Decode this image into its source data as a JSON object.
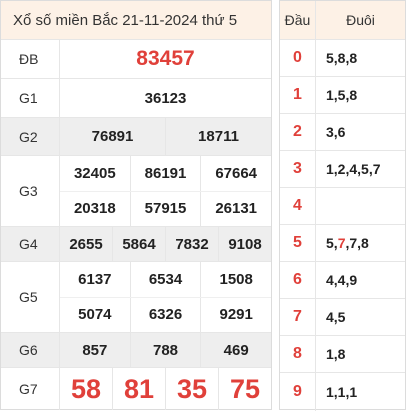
{
  "title": "Xổ số miền Bắc 21-11-2024 thứ 5",
  "prizes": {
    "db": {
      "label": "ĐB",
      "numbers": [
        "83457"
      ]
    },
    "g1": {
      "label": "G1",
      "numbers": [
        "36123"
      ]
    },
    "g2": {
      "label": "G2",
      "numbers": [
        "76891",
        "18711"
      ]
    },
    "g3": {
      "label": "G3",
      "numbers": [
        "32405",
        "86191",
        "67664",
        "20318",
        "57915",
        "26131"
      ]
    },
    "g4": {
      "label": "G4",
      "numbers": [
        "2655",
        "5864",
        "7832",
        "9108"
      ]
    },
    "g5": {
      "label": "G5",
      "numbers": [
        "6137",
        "6534",
        "1508",
        "5074",
        "6326",
        "9291"
      ]
    },
    "g6": {
      "label": "G6",
      "numbers": [
        "857",
        "788",
        "469"
      ]
    },
    "g7": {
      "label": "G7",
      "numbers": [
        "58",
        "81",
        "35",
        "75"
      ]
    }
  },
  "loto": {
    "head_dau": "Đầu",
    "head_duoi": "Đuôi",
    "rows": [
      {
        "dau": "0",
        "duoi": "5,8,8"
      },
      {
        "dau": "1",
        "duoi": "1,5,8"
      },
      {
        "dau": "2",
        "duoi": "3,6"
      },
      {
        "dau": "3",
        "duoi": "1,2,4,5,7"
      },
      {
        "dau": "4",
        "duoi": ""
      },
      {
        "dau": "5",
        "duoi_pre": "5,",
        "duoi_hl": "7",
        "duoi_post": ",7,8"
      },
      {
        "dau": "6",
        "duoi": "4,4,9"
      },
      {
        "dau": "7",
        "duoi": "4,5"
      },
      {
        "dau": "8",
        "duoi": "1,8"
      },
      {
        "dau": "9",
        "duoi": "1,1,1"
      }
    ]
  },
  "colors": {
    "accent_red": "#e0403a",
    "header_bg": "#fdf1e6",
    "alt_row_bg": "#eeeeee"
  }
}
